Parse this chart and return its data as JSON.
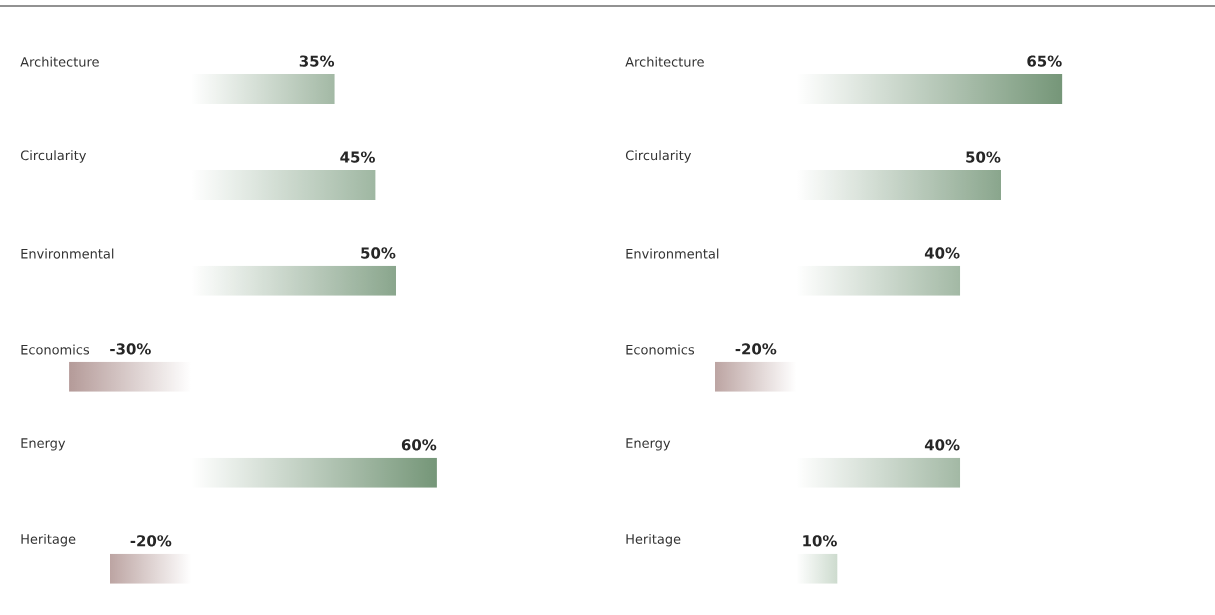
{
  "chart_data": [
    {
      "type": "bar",
      "orientation": "horizontal",
      "categories": [
        "Architecture",
        "Circularity",
        "Environmental",
        "Economics",
        "Energy",
        "Heritage"
      ],
      "values": [
        35,
        45,
        50,
        -30,
        60,
        -20
      ],
      "value_labels": [
        "35%",
        "45%",
        "50%",
        "-30%",
        "60%",
        "-20%"
      ],
      "colors": [
        "#a3b9a5",
        "#9fb7a2",
        "#8aa68d",
        "#b49a98",
        "#759678",
        "#bca4a2"
      ]
    },
    {
      "type": "bar",
      "orientation": "horizontal",
      "categories": [
        "Architecture",
        "Circularity",
        "Environmental",
        "Economics",
        "Energy",
        "Heritage"
      ],
      "values": [
        65,
        50,
        40,
        -20,
        40,
        10
      ],
      "value_labels": [
        "65%",
        "50%",
        "40%",
        "-20%",
        "40%",
        "10%"
      ],
      "colors": [
        "#759678",
        "#8aa68d",
        "#a3b9a5",
        "#bca4a2",
        "#a3b9a5",
        "#cddbce"
      ]
    }
  ]
}
